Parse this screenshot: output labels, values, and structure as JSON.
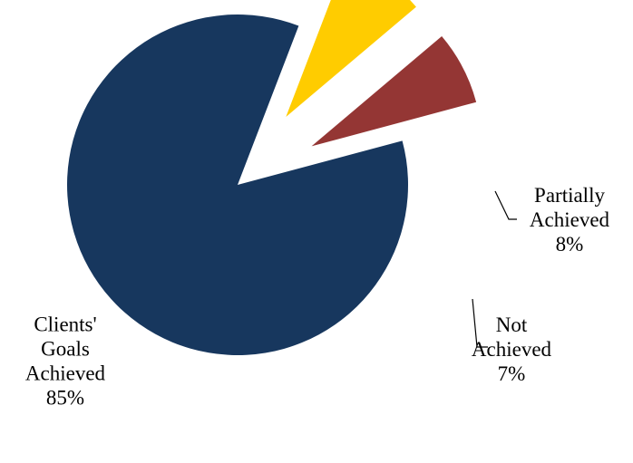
{
  "chart_data": {
    "type": "pie",
    "title": "",
    "start_angle_deg": 69,
    "direction": "clockwise",
    "slices": [
      {
        "name": "Partially Achieved",
        "label_lines": [
          "Partially",
          "Achieved",
          "8%"
        ],
        "value": 8,
        "color": "#FFCC00",
        "exploded": true
      },
      {
        "name": "Not Achieved",
        "label_lines": [
          "Not",
          "Achieved",
          "7%"
        ],
        "value": 7,
        "color": "#943634",
        "exploded": true
      },
      {
        "name": "Clients' Goals Achieved",
        "label_lines": [
          "Clients'",
          "Goals",
          "Achieved",
          "85%"
        ],
        "value": 85,
        "color": "#17375E",
        "exploded": false
      }
    ],
    "legend": "none",
    "data_labels": "outside with leader lines"
  }
}
